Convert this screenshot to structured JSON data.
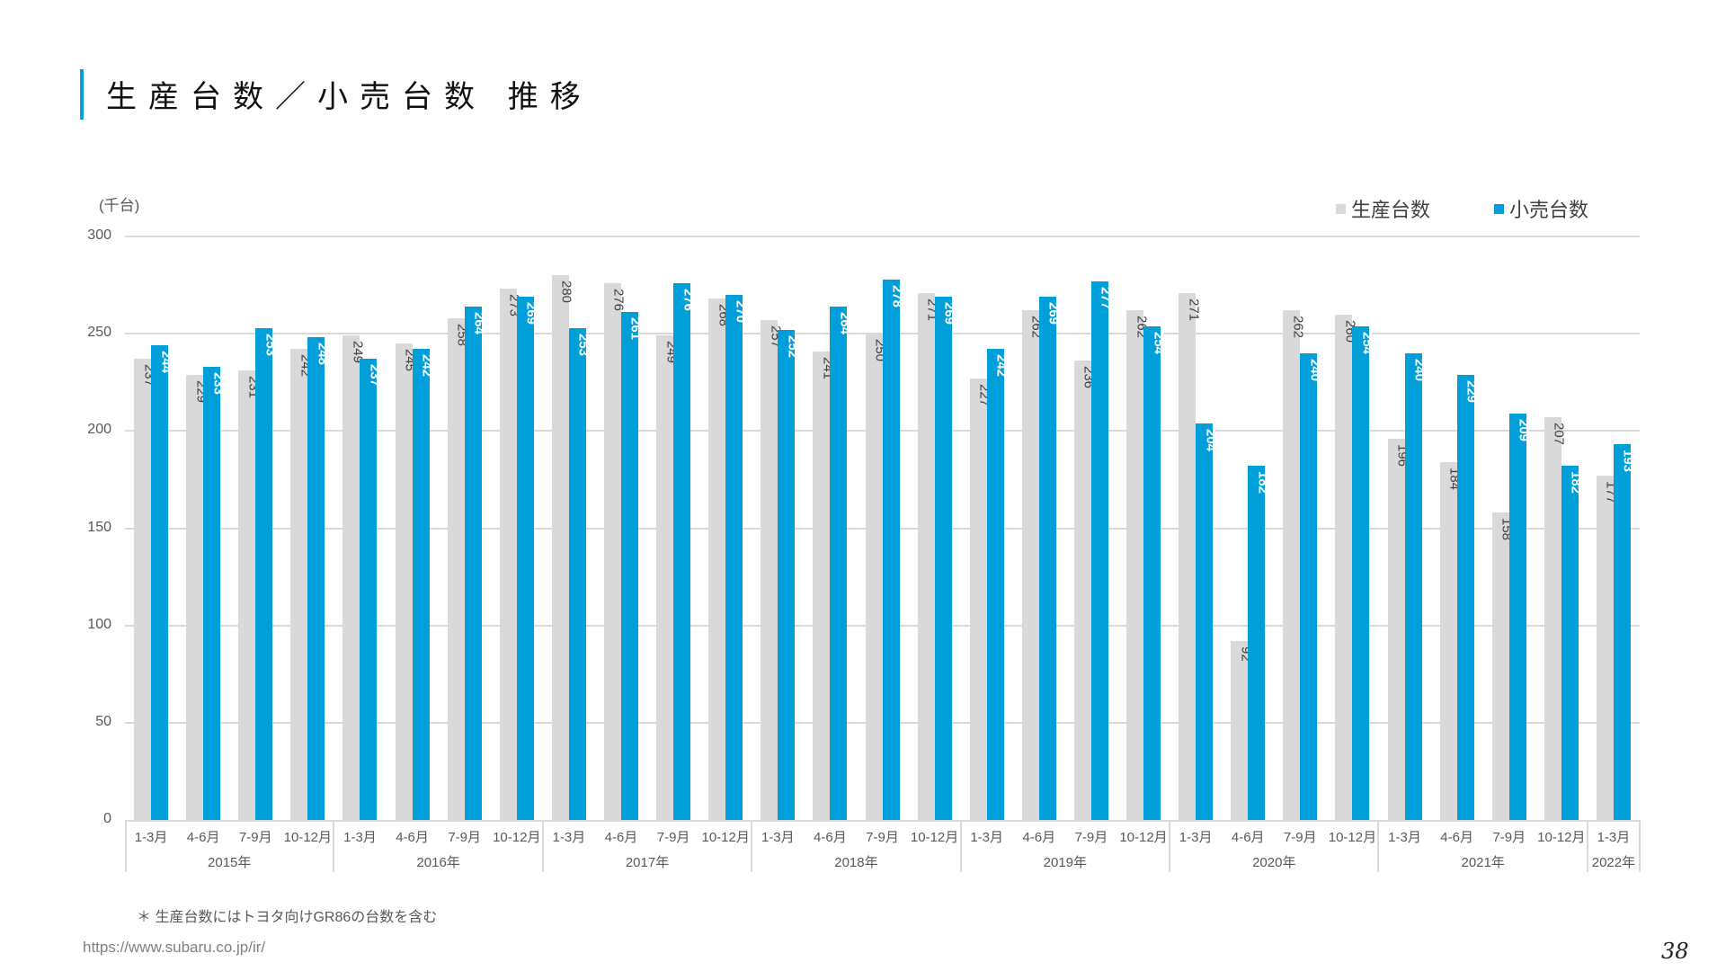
{
  "page": {
    "title": "生産台数／小売台数 推移",
    "footnote": "＊ 生産台数にはトヨタ向けGR86の台数を含む",
    "url": "https://www.subaru.co.jp/ir/",
    "page_number": "38"
  },
  "colors": {
    "accent": "#0aa0dc",
    "production": "#d9d9d9",
    "retail": "#009fda",
    "grid": "#d9d9d9"
  },
  "legend": {
    "production": "生産台数",
    "retail": "小売台数"
  },
  "chart_data": {
    "type": "bar",
    "title": "生産台数／小売台数 推移",
    "xlabel": "",
    "ylabel": "(千台)",
    "unit_label": "(千台)",
    "ylim": [
      0,
      300
    ],
    "yticks": [
      0,
      50,
      100,
      150,
      200,
      250,
      300
    ],
    "grid": true,
    "legend_position": "top-right",
    "years": [
      {
        "label": "2015年",
        "quarters": 4
      },
      {
        "label": "2016年",
        "quarters": 4
      },
      {
        "label": "2017年",
        "quarters": 4
      },
      {
        "label": "2018年",
        "quarters": 4
      },
      {
        "label": "2019年",
        "quarters": 4
      },
      {
        "label": "2020年",
        "quarters": 4
      },
      {
        "label": "2021年",
        "quarters": 4
      },
      {
        "label": "2022年",
        "quarters": 1
      }
    ],
    "categories": [
      "1-3月",
      "4-6月",
      "7-9月",
      "10-12月",
      "1-3月",
      "4-6月",
      "7-9月",
      "10-12月",
      "1-3月",
      "4-6月",
      "7-9月",
      "10-12月",
      "1-3月",
      "4-6月",
      "7-9月",
      "10-12月",
      "1-3月",
      "4-6月",
      "7-9月",
      "10-12月",
      "1-3月",
      "4-6月",
      "7-9月",
      "10-12月",
      "1-3月",
      "4-6月",
      "7-9月",
      "10-12月",
      "1-3月"
    ],
    "series": [
      {
        "name": "生産台数",
        "key": "production",
        "values": [
          237,
          229,
          231,
          242,
          249,
          245,
          258,
          273,
          280,
          276,
          249,
          268,
          257,
          241,
          250,
          271,
          227,
          262,
          236,
          262,
          271,
          92,
          262,
          260,
          196,
          184,
          158,
          207,
          177
        ]
      },
      {
        "name": "小売台数",
        "key": "retail",
        "values": [
          244,
          233,
          253,
          248,
          237,
          242,
          264,
          269,
          253,
          261,
          276,
          270,
          252,
          264,
          278,
          269,
          242,
          269,
          277,
          254,
          204,
          182,
          240,
          254,
          240,
          229,
          209,
          182,
          193
        ]
      }
    ]
  }
}
